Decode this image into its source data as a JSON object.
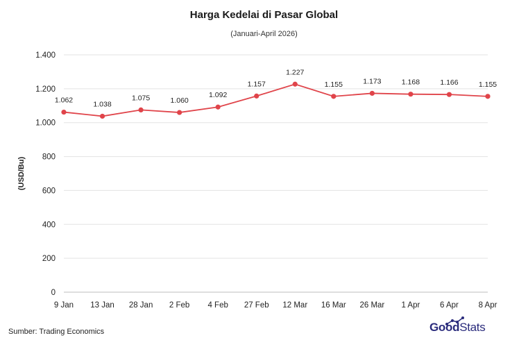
{
  "chart_data": {
    "type": "line",
    "title": "Harga Kedelai di Pasar Global",
    "subtitle": "(Januari-April 2026)",
    "ylabel": "(USD/Bu)",
    "xlabel": "",
    "categories": [
      "9 Jan",
      "13 Jan",
      "28 Jan",
      "2 Feb",
      "4 Feb",
      "27 Feb",
      "12 Mar",
      "16 Mar",
      "26 Mar",
      "1 Apr",
      "6 Apr",
      "8 Apr"
    ],
    "series": [
      {
        "values": [
          1062,
          1038,
          1075,
          1060,
          1092,
          1157,
          1227,
          1155,
          1173,
          1168,
          1166,
          1155
        ],
        "labels": [
          "1.062",
          "1.038",
          "1.075",
          "1.060",
          "1.092",
          "1.157",
          "1.227",
          "1.155",
          "1.173",
          "1.168",
          "1.166",
          "1.155"
        ],
        "color": "#e0444a"
      }
    ],
    "ylim": [
      0,
      1400
    ],
    "yticks": [
      0,
      200,
      400,
      600,
      800,
      1000,
      1200,
      1400
    ],
    "ytick_labels": [
      "0",
      "200",
      "400",
      "600",
      "800",
      "1.000",
      "1.200",
      "1.400"
    ],
    "grid": true,
    "legend": "none"
  },
  "footer": {
    "source": "Sumber: Trading Economics",
    "logo_bold": "Good",
    "logo_thin": "Stats"
  },
  "colors": {
    "line": "#e0444a",
    "grid": "#e3e3e3",
    "logo": "#2a2b7c"
  }
}
